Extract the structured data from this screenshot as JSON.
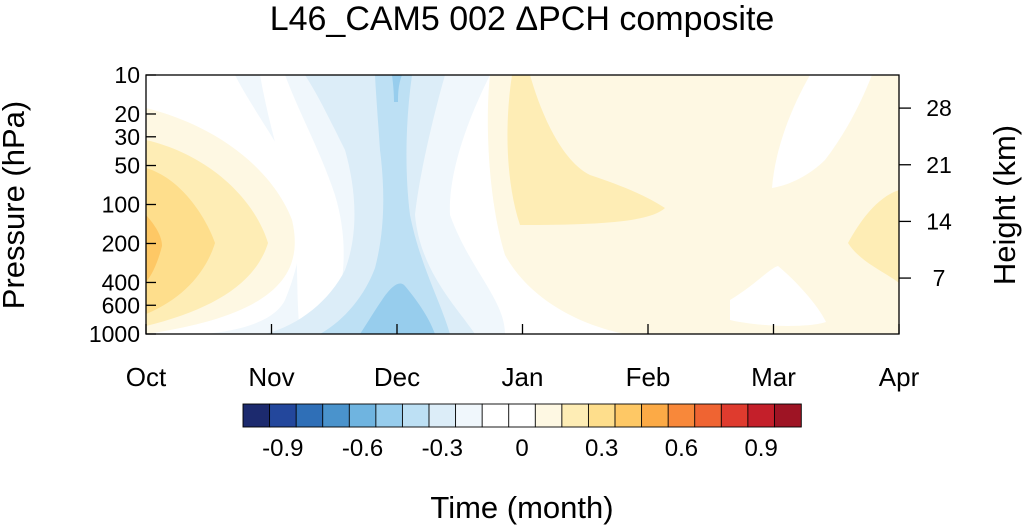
{
  "chart_data": {
    "type": "heatmap",
    "title": "L46_CAM5 002 ΔPCH composite",
    "xlabel": "Time (month)",
    "ylabel": "Pressure (hPa)",
    "y2label": "Height (km)",
    "x_ticks": [
      "Oct",
      "Nov",
      "Dec",
      "Jan",
      "Feb",
      "Mar",
      "Apr"
    ],
    "y_ticks": [
      "10",
      "20",
      "30",
      "50",
      "100",
      "200",
      "400",
      "600",
      "1000"
    ],
    "y_tick_values": [
      10,
      20,
      30,
      50,
      100,
      200,
      400,
      600,
      1000
    ],
    "y_scale": "log",
    "y_inverted": true,
    "ylim": [
      1000,
      10
    ],
    "y2_ticks": [
      "7",
      "14",
      "21",
      "28"
    ],
    "y2_tick_values": [
      7,
      14,
      21,
      28
    ],
    "xlim": [
      0,
      6
    ],
    "colorbar": {
      "levels": [
        -1.05,
        -0.95,
        -0.85,
        -0.75,
        -0.65,
        -0.55,
        -0.45,
        -0.35,
        -0.25,
        -0.15,
        -0.05,
        0.05,
        0.15,
        0.25,
        0.35,
        0.45,
        0.55,
        0.65,
        0.75,
        0.85,
        0.95,
        1.05
      ],
      "colors": [
        "#1c2a6e",
        "#23479c",
        "#2f6fb7",
        "#4a93cc",
        "#6fb4e0",
        "#97cded",
        "#bde0f4",
        "#dcedf8",
        "#f0f7fc",
        "#ffffff",
        "#ffffff",
        "#fef8e3",
        "#feedb5",
        "#fede8c",
        "#fec865",
        "#fcaa46",
        "#f8883a",
        "#ef6432",
        "#df3b2e",
        "#c41f2a",
        "#9e1424"
      ],
      "labels": [
        "-0.9",
        "-0.6",
        "-0.3",
        "0",
        "0.3",
        "0.6",
        "0.9"
      ],
      "label_values": [
        -0.9,
        -0.6,
        -0.3,
        0,
        0.3,
        0.6,
        0.9
      ]
    }
  }
}
